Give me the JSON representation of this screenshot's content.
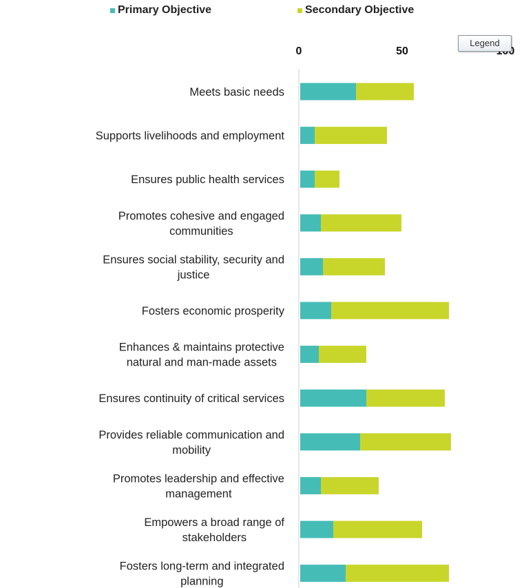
{
  "legend": {
    "items": [
      {
        "name": "Primary Objective",
        "color": "#45bdb6"
      },
      {
        "name": "Secondary Objective",
        "color": "#c8d62c"
      }
    ],
    "tooltip": "Legend"
  },
  "chart_data": {
    "type": "bar",
    "orientation": "horizontal",
    "stacked": true,
    "categories": [
      [
        "Meets basic needs"
      ],
      [
        "Supports livelihoods and employment"
      ],
      [
        "Ensures public health services"
      ],
      [
        "Promotes cohesive and engaged",
        "communities"
      ],
      [
        "Ensures social stability, security and",
        "justice"
      ],
      [
        "Fosters economic prosperity"
      ],
      [
        "Enhances & maintains protective",
        "natural and man-made assets"
      ],
      [
        "Ensures continuity of critical services"
      ],
      [
        "Provides reliable communication and",
        "mobility"
      ],
      [
        "Promotes leadership and effective",
        "management"
      ],
      [
        "Empowers a broad range of",
        "stakeholders"
      ],
      [
        "Fosters long-term and integrated",
        "planning"
      ]
    ],
    "series": [
      {
        "name": "Primary Objective",
        "color": "#45bdb6",
        "values": [
          27,
          7,
          7,
          10,
          11,
          15,
          9,
          32,
          29,
          10,
          16,
          22
        ]
      },
      {
        "name": "Secondary Objective",
        "color": "#c8d62c",
        "values": [
          28,
          35,
          12,
          39,
          30,
          57,
          23,
          38,
          44,
          28,
          43,
          50
        ]
      }
    ],
    "xlim": [
      0,
      100
    ],
    "xticks": [
      "0",
      "50",
      "100"
    ],
    "legend_position": "top",
    "grid": false
  }
}
